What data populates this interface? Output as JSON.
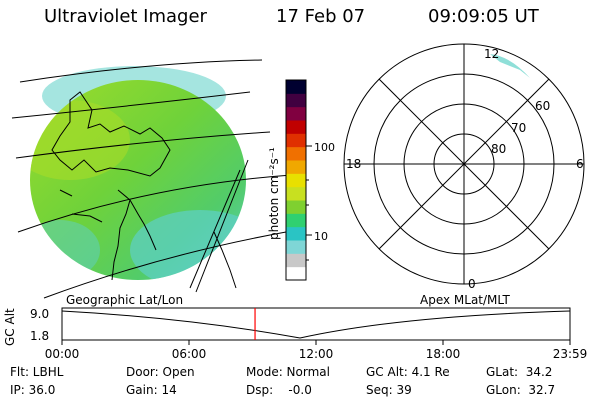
{
  "header": {
    "title": "Ultraviolet Imager",
    "date": "17 Feb 07",
    "time": "09:09:05 UT"
  },
  "colorbar": {
    "unit_label": "photon cm⁻²s⁻¹",
    "ticks": [
      "100",
      "10"
    ],
    "colors": [
      "#ffffff",
      "#c8c8c8",
      "#7fd6d6",
      "#2ac4c4",
      "#30d070",
      "#7fd030",
      "#c8e020",
      "#e8e000",
      "#f0a800",
      "#f07000",
      "#e03000",
      "#c00000",
      "#800040",
      "#400040",
      "#000030"
    ]
  },
  "polar_plot": {
    "mlt_labels": {
      "top": "12",
      "left": "18",
      "right": "6",
      "bottom": "0"
    },
    "mlat_labels": [
      "60",
      "70",
      "80"
    ]
  },
  "timeline": {
    "left_label": "Geographic Lat/Lon",
    "right_label": "Apex MLat/MLT",
    "axis_label": "GC Alt",
    "y_ticks": [
      "9.0",
      "1.8"
    ],
    "x_ticks": [
      "00:00",
      "06:00",
      "12:00",
      "18:00",
      "23:59"
    ],
    "current_time_fraction": 0.38,
    "marker_color": "#ff0000"
  },
  "status": {
    "flt": "Flt: LBHL",
    "ip": "IP: 36.0",
    "door": "Door: Open",
    "gain": "Gain: 14",
    "mode": "Mode: Normal",
    "dsp": "Dsp:    -0.0",
    "gc_alt": "GC Alt: 4.1 Re",
    "seq": "Seq: 39",
    "glat": "GLat:  34.2",
    "glon": "GLon:  32.7"
  }
}
